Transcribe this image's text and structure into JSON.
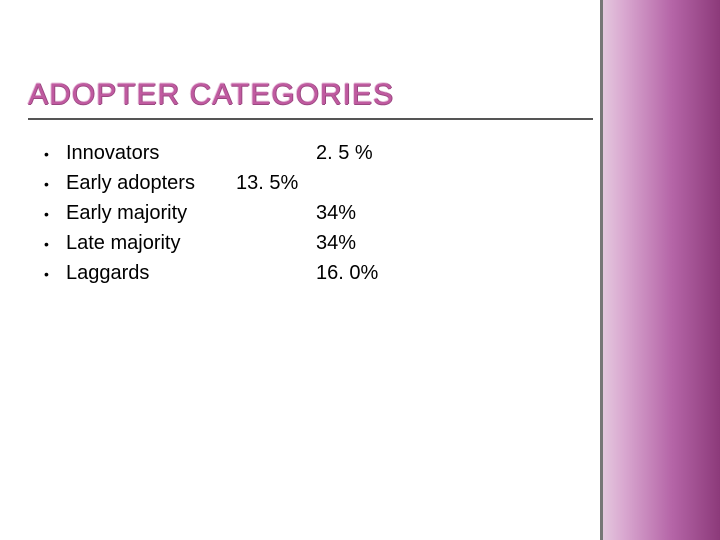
{
  "title": "ADOPTER CATEGORIES",
  "title_color": "#c05aa0",
  "title_fontsize": 30,
  "body_fontsize": 20,
  "body_color": "#000000",
  "rule_color": "#555555",
  "sidebar_gradient": [
    "#e6cce0",
    "#d9a8d0",
    "#b565a7",
    "#8c3a7a"
  ],
  "sidebar_border": "#777777",
  "background_color": "#ffffff",
  "items": [
    {
      "label": "Innovators",
      "mid": "",
      "value": "2. 5 %"
    },
    {
      "label": "Early adopters",
      "mid": "13. 5%",
      "value": ""
    },
    {
      "label": "Early majority",
      "mid": "",
      "value": "34%"
    },
    {
      "label": "Late majority",
      "mid": "",
      "value": "34%"
    },
    {
      "label": "Laggards",
      "mid": "",
      "value": "16. 0%"
    }
  ]
}
